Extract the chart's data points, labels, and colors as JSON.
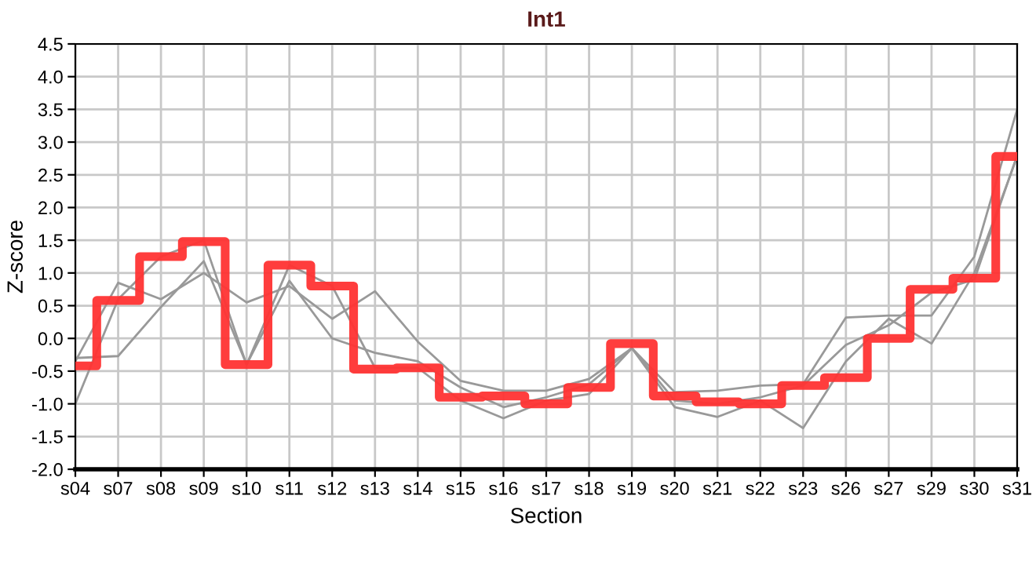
{
  "chart_data": {
    "type": "line",
    "title": "Int1",
    "xlabel": "Section",
    "ylabel": "Z-score",
    "categories": [
      "s04",
      "s07",
      "s08",
      "s09",
      "s10",
      "s11",
      "s12",
      "s13",
      "s14",
      "s15",
      "s16",
      "s17",
      "s18",
      "s19",
      "s20",
      "s21",
      "s22",
      "s23",
      "s26",
      "s27",
      "s29",
      "s30",
      "s31"
    ],
    "series": [
      {
        "color": "#999999",
        "values": [
          -0.35,
          0.85,
          0.6,
          1.0,
          0.55,
          0.8,
          0.3,
          0.72,
          -0.05,
          -0.65,
          -0.8,
          -0.8,
          -0.62,
          -0.15,
          -0.82,
          -0.8,
          -0.72,
          -0.7,
          0.32,
          0.35,
          0.35,
          1.25,
          3.5
        ]
      },
      {
        "color": "#999999",
        "values": [
          -1.0,
          0.6,
          1.25,
          1.5,
          -0.4,
          1.12,
          0.8,
          -0.45,
          -0.45,
          -0.95,
          -1.22,
          -0.95,
          -0.85,
          -0.15,
          -1.05,
          -1.2,
          -0.95,
          -1.37,
          -0.35,
          0.3,
          -0.08,
          1.0,
          2.78
        ]
      },
      {
        "color": "#999999",
        "values": [
          -0.3,
          -0.27,
          0.48,
          1.18,
          -0.4,
          0.88,
          0.0,
          -0.22,
          -0.35,
          -0.75,
          -1.05,
          -0.9,
          -0.7,
          -0.15,
          -0.95,
          -1.0,
          -0.9,
          -0.72,
          -0.1,
          0.2,
          0.7,
          0.9,
          2.8
        ]
      },
      {
        "type": "step",
        "color": "#ff3333",
        "values": [
          -0.42,
          0.58,
          1.25,
          1.48,
          -0.4,
          1.12,
          0.8,
          -0.47,
          -0.45,
          -0.9,
          -0.88,
          -1.0,
          -0.75,
          -0.08,
          -0.88,
          -0.97,
          -1.0,
          -0.72,
          -0.6,
          0.0,
          0.75,
          0.92,
          2.78
        ]
      }
    ],
    "ylim": [
      -2.0,
      4.5
    ],
    "yticks": [
      {
        "value": -2.0,
        "label": "-2.0"
      },
      {
        "value": -1.5,
        "label": "-1.5"
      },
      {
        "value": -1.0,
        "label": "-1.0"
      },
      {
        "value": -0.5,
        "label": "-0.5"
      },
      {
        "value": 0,
        "label": "0.0"
      },
      {
        "value": 0.5,
        "label": "0.5"
      },
      {
        "value": 1.0,
        "label": "1.0"
      },
      {
        "value": 1.5,
        "label": "1.5"
      },
      {
        "value": 2.0,
        "label": "2.0"
      },
      {
        "value": 2.5,
        "label": "2.5"
      },
      {
        "value": 3.0,
        "label": "3.0"
      },
      {
        "value": 3.5,
        "label": "3.5"
      },
      {
        "value": 4.0,
        "label": "4.0"
      },
      {
        "value": 4.5,
        "label": "4.5"
      }
    ],
    "grid": true
  }
}
